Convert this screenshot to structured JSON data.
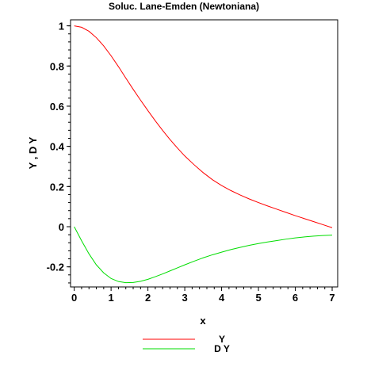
{
  "chart_data": {
    "type": "line",
    "title": "Soluc. Lane-Emden (Newtoniana)",
    "xlabel": "x",
    "ylabel": "Y , D Y",
    "xlim": [
      -0.1,
      7.15
    ],
    "ylim": [
      -0.3,
      1.03
    ],
    "xticks": [
      0,
      1,
      2,
      3,
      4,
      5,
      6,
      7
    ],
    "xtick_labels": [
      "0",
      "1",
      "2",
      "3",
      "4",
      "5",
      "6",
      "7"
    ],
    "yticks": [
      -0.2,
      0,
      0.2,
      0.4,
      0.6,
      0.8,
      1
    ],
    "ytick_labels": [
      "-0.2",
      "0",
      "0.2",
      "0.4",
      "0.6",
      "0.8",
      "1"
    ],
    "grid": false,
    "legend_position": "bottom-center",
    "series": [
      {
        "name": "Y",
        "color": "#ff0000",
        "x": [
          0,
          0.2,
          0.4,
          0.6,
          0.8,
          1.0,
          1.2,
          1.4,
          1.6,
          1.8,
          2.0,
          2.2,
          2.4,
          2.6,
          2.8,
          3.0,
          3.25,
          3.5,
          3.75,
          4.0,
          4.25,
          4.5,
          4.75,
          5.0,
          5.25,
          5.5,
          5.75,
          6.0,
          6.25,
          6.5,
          6.75,
          7.0
        ],
        "values": [
          1.0,
          0.993,
          0.973,
          0.941,
          0.9,
          0.851,
          0.797,
          0.74,
          0.684,
          0.63,
          0.578,
          0.527,
          0.479,
          0.434,
          0.392,
          0.352,
          0.309,
          0.269,
          0.234,
          0.205,
          0.18,
          0.158,
          0.138,
          0.12,
          0.103,
          0.087,
          0.071,
          0.055,
          0.04,
          0.025,
          0.01,
          -0.005
        ]
      },
      {
        "name": "D Y",
        "color": "#00dd00",
        "x": [
          0,
          0.2,
          0.4,
          0.6,
          0.8,
          1.0,
          1.2,
          1.4,
          1.6,
          1.8,
          2.0,
          2.2,
          2.4,
          2.6,
          2.8,
          3.0,
          3.25,
          3.5,
          3.75,
          4.0,
          4.25,
          4.5,
          4.75,
          5.0,
          5.25,
          5.5,
          5.75,
          6.0,
          6.25,
          6.5,
          6.75,
          7.0
        ],
        "values": [
          0.0,
          -0.07,
          -0.135,
          -0.19,
          -0.23,
          -0.258,
          -0.273,
          -0.279,
          -0.278,
          -0.272,
          -0.262,
          -0.249,
          -0.235,
          -0.22,
          -0.205,
          -0.19,
          -0.172,
          -0.155,
          -0.14,
          -0.127,
          -0.114,
          -0.103,
          -0.093,
          -0.084,
          -0.076,
          -0.069,
          -0.062,
          -0.056,
          -0.051,
          -0.047,
          -0.044,
          -0.042
        ]
      }
    ]
  }
}
